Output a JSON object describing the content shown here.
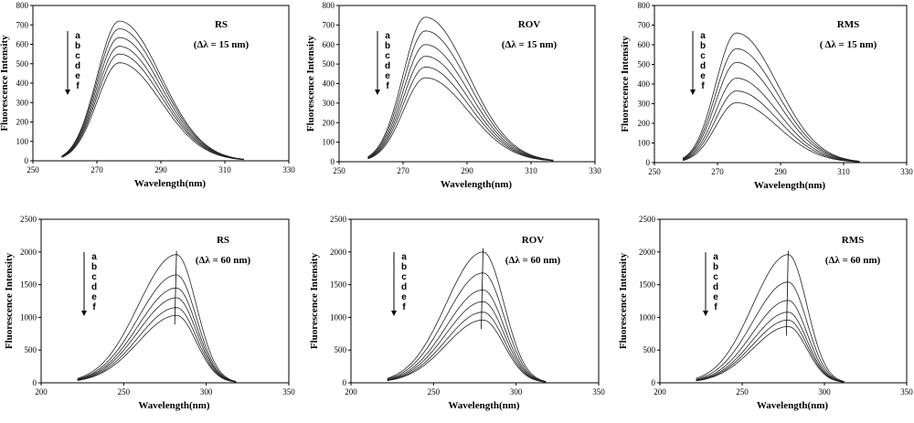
{
  "chart_data": [
    {
      "type": "line",
      "xlabel": "Wavelength(nm)",
      "ylabel": "Fluorescence Intensity",
      "xlim": [
        250,
        330
      ],
      "ylim": [
        0,
        800
      ],
      "xticks": [
        "250",
        "270",
        "290",
        "310",
        "330"
      ],
      "yticks": [
        "0",
        "100",
        "200",
        "300",
        "400",
        "500",
        "600",
        "700",
        "800"
      ],
      "annotation": {
        "sample": "RS",
        "delta": "(Δλ = 15 nm)"
      },
      "legend_letters": [
        "a",
        "b",
        "c",
        "d",
        "e",
        "f"
      ],
      "peak_x": 277,
      "curve_start": 259,
      "curve_end": 316,
      "series": [
        {
          "name": "a",
          "peak": 720
        },
        {
          "name": "b",
          "peak": 680
        },
        {
          "name": "c",
          "peak": 635
        },
        {
          "name": "d",
          "peak": 590
        },
        {
          "name": "e",
          "peak": 550
        },
        {
          "name": "f",
          "peak": 505
        }
      ]
    },
    {
      "type": "line",
      "xlabel": "Wavelength(nm)",
      "ylabel": "Fluorescence Intensity",
      "xlim": [
        250,
        330
      ],
      "ylim": [
        0,
        800
      ],
      "xticks": [
        "250",
        "270",
        "290",
        "310",
        "330"
      ],
      "yticks": [
        "0",
        "100",
        "200",
        "300",
        "400",
        "500",
        "600",
        "700",
        "800"
      ],
      "annotation": {
        "sample": "ROV",
        "delta": "(Δλ = 15 nm)"
      },
      "legend_letters": [
        "a",
        "b",
        "c",
        "d",
        "e",
        "f"
      ],
      "peak_x": 277,
      "curve_start": 259,
      "curve_end": 317,
      "series": [
        {
          "name": "a",
          "peak": 740
        },
        {
          "name": "b",
          "peak": 670
        },
        {
          "name": "c",
          "peak": 600
        },
        {
          "name": "d",
          "peak": 540
        },
        {
          "name": "e",
          "peak": 485
        },
        {
          "name": "f",
          "peak": 430
        }
      ]
    },
    {
      "type": "line",
      "xlabel": "Wavelength(nm)",
      "ylabel": "Fluorescence Intensity",
      "xlim": [
        250,
        330
      ],
      "ylim": [
        0,
        800
      ],
      "xticks": [
        "250",
        "270",
        "290",
        "310",
        "330"
      ],
      "yticks": [
        "0",
        "100",
        "200",
        "300",
        "400",
        "500",
        "600",
        "700",
        "800"
      ],
      "annotation": {
        "sample": "RMS",
        "delta": "( Δλ = 15 nm)"
      },
      "legend_letters": [
        "a",
        "b",
        "c",
        "d",
        "e",
        "f"
      ],
      "peak_x": 276,
      "curve_start": 259,
      "curve_end": 315,
      "series": [
        {
          "name": "a",
          "peak": 660
        },
        {
          "name": "b",
          "peak": 580
        },
        {
          "name": "c",
          "peak": 510
        },
        {
          "name": "d",
          "peak": 430
        },
        {
          "name": "e",
          "peak": 365
        },
        {
          "name": "f",
          "peak": 305
        }
      ]
    },
    {
      "type": "line",
      "xlabel": "Wavelength(nm)",
      "ylabel": "Fluorescence Intensity",
      "xlim": [
        200,
        350
      ],
      "ylim": [
        0,
        2500
      ],
      "xticks": [
        "200",
        "250",
        "300",
        "350"
      ],
      "yticks": [
        "0",
        "500",
        "1000",
        "1500",
        "2000",
        "2500"
      ],
      "annotation": {
        "sample": "RS",
        "delta": "(Δλ = 60 nm)"
      },
      "legend_letters": [
        "a",
        "b",
        "c",
        "d",
        "e",
        "f"
      ],
      "peak_x": 282,
      "curve_start": 222,
      "curve_end": 318,
      "series": [
        {
          "name": "a",
          "peak": 1960
        },
        {
          "name": "b",
          "peak": 1650
        },
        {
          "name": "c",
          "peak": 1450
        },
        {
          "name": "d",
          "peak": 1300
        },
        {
          "name": "e",
          "peak": 1150
        },
        {
          "name": "f",
          "peak": 1030
        }
      ]
    },
    {
      "type": "line",
      "xlabel": "Wavelength(nm)",
      "ylabel": "Fluorescence Intensity",
      "xlim": [
        200,
        350
      ],
      "ylim": [
        0,
        2500
      ],
      "xticks": [
        "200",
        "250",
        "300",
        "350"
      ],
      "yticks": [
        "0",
        "500",
        "1000",
        "1500",
        "2000",
        "2500"
      ],
      "annotation": {
        "sample": "ROV",
        "delta": "(Δλ = 60 nm)"
      },
      "legend_letters": [
        "a",
        "b",
        "c",
        "d",
        "e",
        "f"
      ],
      "peak_x": 280,
      "curve_start": 222,
      "curve_end": 318,
      "series": [
        {
          "name": "a",
          "peak": 2000
        },
        {
          "name": "b",
          "peak": 1680
        },
        {
          "name": "c",
          "peak": 1420
        },
        {
          "name": "d",
          "peak": 1240
        },
        {
          "name": "e",
          "peak": 1080
        },
        {
          "name": "f",
          "peak": 960
        }
      ]
    },
    {
      "type": "line",
      "xlabel": "Wavelength(nm)",
      "ylabel": "Fluorescence Intensity",
      "xlim": [
        200,
        350
      ],
      "ylim": [
        0,
        2500
      ],
      "xticks": [
        "200",
        "250",
        "300",
        "350"
      ],
      "yticks": [
        "0",
        "500",
        "1000",
        "1500",
        "2000",
        "2500"
      ],
      "annotation": {
        "sample": "RMS",
        "delta": "(Δλ = 60 nm)"
      },
      "legend_letters": [
        "a",
        "b",
        "c",
        "d",
        "e",
        "f"
      ],
      "peak_x": 278,
      "curve_start": 222,
      "curve_end": 312,
      "series": [
        {
          "name": "a",
          "peak": 1960
        },
        {
          "name": "b",
          "peak": 1540
        },
        {
          "name": "c",
          "peak": 1260
        },
        {
          "name": "d",
          "peak": 1080
        },
        {
          "name": "e",
          "peak": 960
        },
        {
          "name": "f",
          "peak": 860
        }
      ]
    }
  ]
}
